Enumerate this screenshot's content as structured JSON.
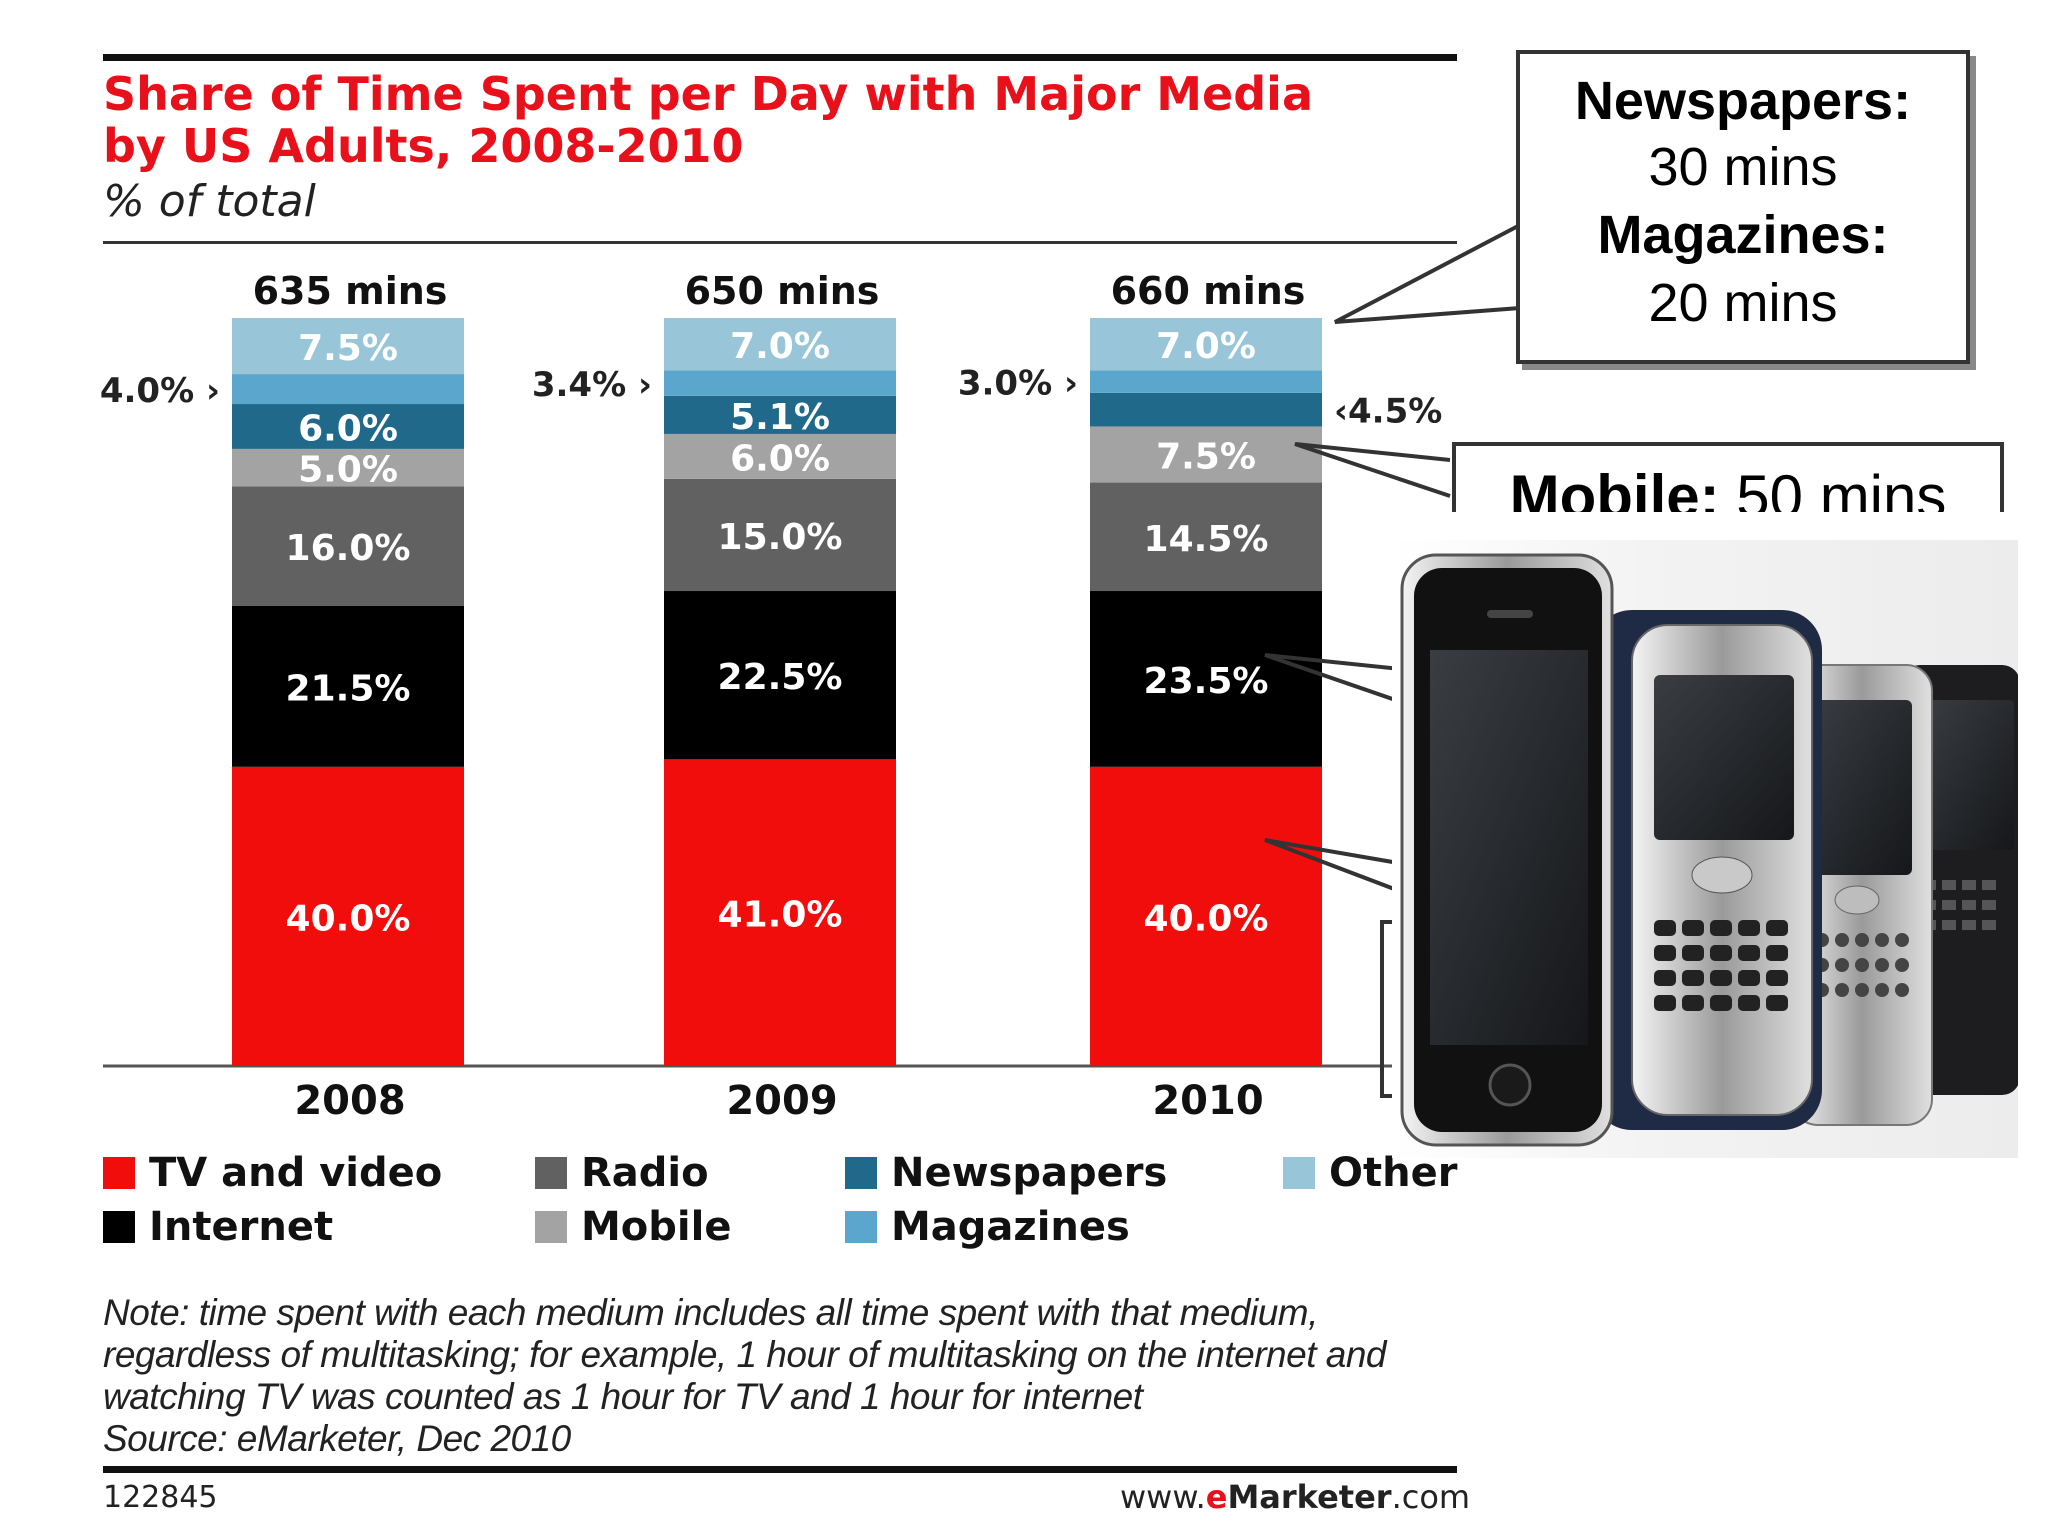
{
  "title_line1": "Share of Time Spent per Day with Major Media",
  "title_line2": "by US Adults, 2008-2010",
  "subtitle": "% of total",
  "colors": {
    "tv": "#f20d0d",
    "internet": "#000000",
    "radio": "#616161",
    "mobile": "#a3a3a3",
    "newspapers": "#21698a",
    "magazines": "#5aa6cc",
    "other": "#98c6d8",
    "title_red": "#e8101a"
  },
  "chart_data": {
    "type": "bar",
    "stacked": true,
    "categories": [
      "2008",
      "2009",
      "2010"
    ],
    "totals": [
      "635 mins",
      "650 mins",
      "660 mins"
    ],
    "series": [
      {
        "name": "TV and video",
        "key": "tv",
        "values": [
          40.0,
          41.0,
          40.0
        ],
        "labels": [
          "40.0%",
          "41.0%",
          "40.0%"
        ]
      },
      {
        "name": "Internet",
        "key": "internet",
        "values": [
          21.5,
          22.5,
          23.5
        ],
        "labels": [
          "21.5%",
          "22.5%",
          "23.5%"
        ]
      },
      {
        "name": "Radio",
        "key": "radio",
        "values": [
          16.0,
          15.0,
          14.5
        ],
        "labels": [
          "16.0%",
          "15.0%",
          "14.5%"
        ]
      },
      {
        "name": "Mobile",
        "key": "mobile",
        "values": [
          5.0,
          6.0,
          7.5
        ],
        "labels": [
          "5.0%",
          "6.0%",
          "7.5%"
        ]
      },
      {
        "name": "Newspapers",
        "key": "newspapers",
        "values": [
          6.0,
          5.1,
          4.5
        ],
        "labels": [
          "6.0%",
          "5.1%",
          "4.5%"
        ]
      },
      {
        "name": "Magazines",
        "key": "magazines",
        "values": [
          4.0,
          3.4,
          3.0
        ],
        "labels": [
          "4.0%",
          "3.4%",
          "3.0%"
        ]
      },
      {
        "name": "Other",
        "key": "other",
        "values": [
          7.5,
          7.0,
          7.0
        ],
        "labels": [
          "7.5%",
          "7.0%",
          "7.0%"
        ]
      }
    ],
    "ylim": [
      0,
      100
    ],
    "grid": false,
    "legend_position": "bottom"
  },
  "legend": [
    {
      "label": "TV and video",
      "key": "tv"
    },
    {
      "label": "Internet",
      "key": "internet"
    },
    {
      "label": "Radio",
      "key": "radio"
    },
    {
      "label": "Mobile",
      "key": "mobile"
    },
    {
      "label": "Newspapers",
      "key": "newspapers"
    },
    {
      "label": "Magazines",
      "key": "magazines"
    },
    {
      "label": "Other",
      "key": "other"
    }
  ],
  "callout_print": {
    "newspapers_label": "Newspapers:",
    "newspapers_value": "30 mins",
    "magazines_label": "Magazines:",
    "magazines_value": "20 mins",
    "mobile_label": "Mobile:",
    "mobile_value": "50 mins"
  },
  "note": "Note: time spent with each medium includes all time spent with that medium, regardless of multitasking; for example, 1 hour of multitasking on the internet and watching TV was counted as 1 hour for TV and 1 hour for internet",
  "source": "Source: eMarketer, Dec 2010",
  "footer_id": "122845",
  "footer_url_prefix": "www.",
  "footer_url_brand_e": "e",
  "footer_url_brand_rest": "Marketer",
  "footer_url_suffix": ".com",
  "image_subject": "mobile-phones-photo"
}
